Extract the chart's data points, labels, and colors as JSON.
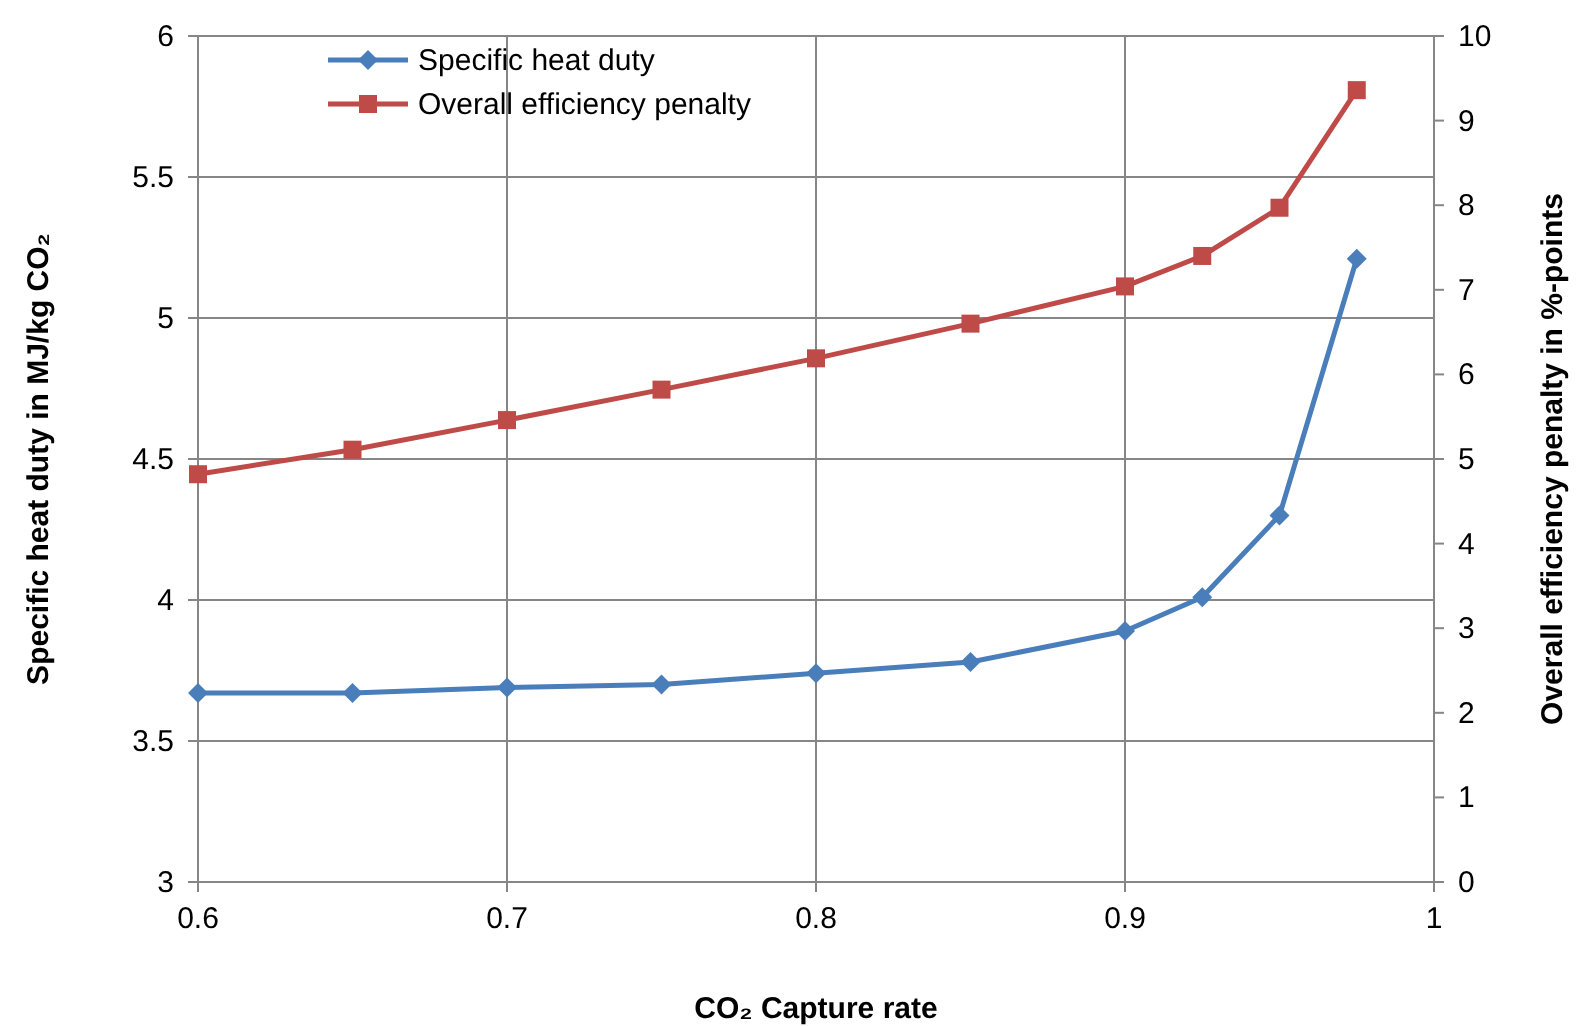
{
  "chart_data": {
    "type": "line",
    "xlabel": "CO₂ Capture rate",
    "ylabel": "Specific heat duty in MJ/kg CO₂",
    "y2label": "Overall efficiency penalty in %-points",
    "x": [
      0.6,
      0.65,
      0.7,
      0.75,
      0.8,
      0.85,
      0.9,
      0.925,
      0.95,
      0.975
    ],
    "series": [
      {
        "name": "Specific heat duty",
        "color": "#4a7ebb",
        "marker": "diamond",
        "values": [
          3.67,
          3.67,
          3.69,
          3.7,
          3.74,
          3.78,
          3.89,
          4.01,
          4.3,
          5.21
        ]
      },
      {
        "name": "Overall efficiency penalty",
        "color": "#be4b48",
        "marker": "square",
        "axis": "y2",
        "values": [
          4.82,
          5.11,
          5.46,
          5.82,
          6.19,
          6.6,
          7.04,
          7.4,
          7.97,
          9.36
        ]
      }
    ],
    "xlim": [
      0.6,
      1
    ],
    "xticks": [
      0.6,
      0.7,
      0.8,
      0.9,
      1
    ],
    "ylim": [
      3,
      6
    ],
    "yticks": [
      3,
      3.5,
      4,
      4.5,
      5,
      5.5,
      6
    ],
    "y2lim": [
      0,
      10
    ],
    "y2ticks": [
      0,
      1,
      2,
      3,
      4,
      5,
      6,
      7,
      8,
      9,
      10
    ],
    "grid": true,
    "legend": "top left"
  }
}
